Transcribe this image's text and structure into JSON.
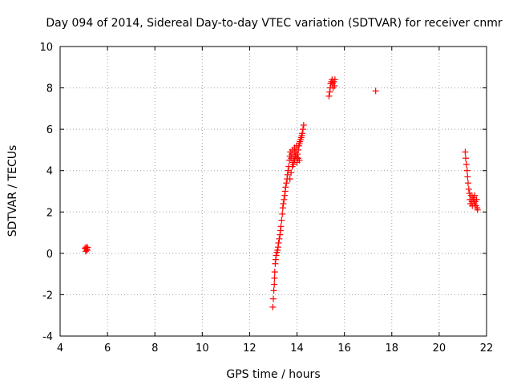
{
  "chart_data": {
    "type": "scatter",
    "title": "Day 094 of 2014, Sidereal Day-to-day VTEC variation (SDTVAR) for receiver cnmr",
    "xlabel": "GPS time / hours",
    "ylabel": "SDTVAR / TECUs",
    "xlim": [
      4,
      22
    ],
    "ylim": [
      -4,
      10
    ],
    "x_ticks": [
      "4",
      "6",
      "8",
      "10",
      "12",
      "14",
      "16",
      "18",
      "20",
      "22"
    ],
    "y_ticks": [
      "-4",
      "-2",
      "0",
      "2",
      "4",
      "6",
      "8",
      "10"
    ],
    "grid": true,
    "marker": "+",
    "series": [
      {
        "name": "SDTVAR",
        "color": "#ff0000",
        "x": [
          5.05,
          5.08,
          5.1,
          5.12,
          5.14,
          5.16,
          12.98,
          13.0,
          13.02,
          13.04,
          13.05,
          13.06,
          13.08,
          13.1,
          13.12,
          13.15,
          13.18,
          13.2,
          13.22,
          13.25,
          13.28,
          13.3,
          13.32,
          13.35,
          13.38,
          13.4,
          13.42,
          13.45,
          13.48,
          13.5,
          13.52,
          13.55,
          13.58,
          13.6,
          13.62,
          13.65,
          13.68,
          13.7,
          13.72,
          13.75,
          13.78,
          13.8,
          13.82,
          13.85,
          13.88,
          13.9,
          13.92,
          13.95,
          13.98,
          14.0,
          14.02,
          14.05,
          14.08,
          14.1,
          14.12,
          14.15,
          14.18,
          14.2,
          14.22,
          14.25,
          14.28,
          13.7,
          13.75,
          13.8,
          13.85,
          13.9,
          13.95,
          14.0,
          14.05,
          14.1,
          15.35,
          15.38,
          15.4,
          15.42,
          15.45,
          15.48,
          15.5,
          15.52,
          15.55,
          15.58,
          15.6,
          17.32,
          21.1,
          21.12,
          21.15,
          21.18,
          21.2,
          21.22,
          21.25,
          21.28,
          21.3,
          21.32,
          21.35,
          21.38,
          21.4,
          21.42,
          21.45,
          21.48,
          21.5,
          21.52,
          21.55,
          21.58,
          21.6,
          21.62
        ],
        "y": [
          0.25,
          0.1,
          0.3,
          0.2,
          0.15,
          0.28,
          -2.6,
          -2.2,
          -1.8,
          -1.5,
          -1.2,
          -0.9,
          -0.5,
          -0.3,
          -0.1,
          0.05,
          0.15,
          0.3,
          0.5,
          0.7,
          0.9,
          1.1,
          1.3,
          1.6,
          1.9,
          2.2,
          2.4,
          2.6,
          2.8,
          3.0,
          3.2,
          3.4,
          3.6,
          3.8,
          4.0,
          4.2,
          4.5,
          4.7,
          4.9,
          4.6,
          4.8,
          5.0,
          4.4,
          4.6,
          4.9,
          5.1,
          4.7,
          4.9,
          5.2,
          4.6,
          4.8,
          5.0,
          5.2,
          5.3,
          5.4,
          5.5,
          5.6,
          5.7,
          5.8,
          6.0,
          6.2,
          3.6,
          3.9,
          4.2,
          4.3,
          4.5,
          4.7,
          4.4,
          4.6,
          4.5,
          7.6,
          7.8,
          8.0,
          8.2,
          8.3,
          8.4,
          8.2,
          8.0,
          8.3,
          8.1,
          8.4,
          7.85,
          4.9,
          4.6,
          4.3,
          4.0,
          3.7,
          3.4,
          3.1,
          2.9,
          2.6,
          2.4,
          2.8,
          2.5,
          2.3,
          2.7,
          2.6,
          2.4,
          2.8,
          2.5,
          2.3,
          2.6,
          2.2,
          2.1
        ]
      }
    ]
  }
}
